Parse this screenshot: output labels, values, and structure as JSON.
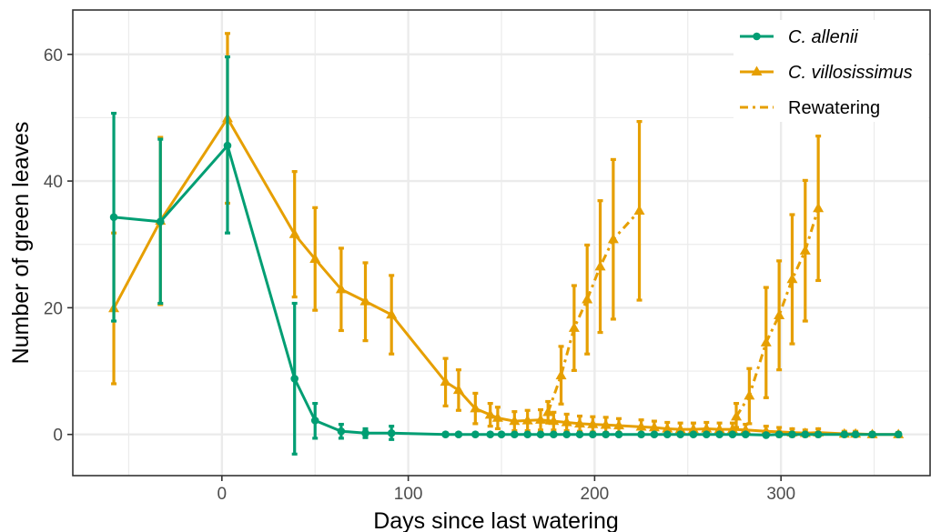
{
  "chart_data": {
    "type": "line",
    "title": "",
    "xlabel": "Days since last watering",
    "ylabel": "Number of green leaves",
    "xlim": [
      -80,
      380
    ],
    "ylim": [
      -6.5,
      67
    ],
    "x_ticks": [
      0,
      100,
      200,
      300
    ],
    "y_ticks": [
      0,
      20,
      40,
      60
    ],
    "grid": true,
    "legend_position": "top-right",
    "legend": [
      {
        "label": "C. allenii",
        "italic": true,
        "series": "C. allenii"
      },
      {
        "label": "C. villosissimus",
        "italic": true,
        "series": "C. villosissimus"
      },
      {
        "label": "Rewatering",
        "italic": false,
        "series": "Rewatering"
      }
    ],
    "series": [
      {
        "name": "C. allenii",
        "color": "#009E73",
        "marker": "circle",
        "linestyle": "solid",
        "points": [
          {
            "x": -58,
            "y": 34.3,
            "lo": 17.9,
            "hi": 50.7
          },
          {
            "x": -33,
            "y": 33.6,
            "lo": 20.7,
            "hi": 46.6
          },
          {
            "x": 3,
            "y": 45.6,
            "lo": 31.8,
            "hi": 59.6
          },
          {
            "x": 39,
            "y": 8.8,
            "lo": -3.1,
            "hi": 20.7
          },
          {
            "x": 50,
            "y": 2.2,
            "lo": -0.6,
            "hi": 4.9
          },
          {
            "x": 64,
            "y": 0.5,
            "lo": -0.6,
            "hi": 1.6
          },
          {
            "x": 77,
            "y": 0.2,
            "lo": -0.5,
            "hi": 0.9
          },
          {
            "x": 91,
            "y": 0.2,
            "lo": -0.8,
            "hi": 1.3
          },
          {
            "x": 120,
            "y": 0.0
          },
          {
            "x": 127,
            "y": 0.0
          },
          {
            "x": 136,
            "y": 0.0
          },
          {
            "x": 144,
            "y": 0.0
          },
          {
            "x": 150,
            "y": 0.0
          },
          {
            "x": 157,
            "y": 0.0
          },
          {
            "x": 164,
            "y": 0.0
          },
          {
            "x": 171,
            "y": 0.0
          },
          {
            "x": 178,
            "y": 0.0
          },
          {
            "x": 185,
            "y": 0.0
          },
          {
            "x": 192,
            "y": 0.0
          },
          {
            "x": 199,
            "y": 0.0
          },
          {
            "x": 206,
            "y": 0.0
          },
          {
            "x": 213,
            "y": 0.0
          },
          {
            "x": 225,
            "y": 0.0
          },
          {
            "x": 232,
            "y": 0.0
          },
          {
            "x": 239,
            "y": 0.0
          },
          {
            "x": 246,
            "y": 0.0
          },
          {
            "x": 253,
            "y": 0.0
          },
          {
            "x": 260,
            "y": 0.0
          },
          {
            "x": 267,
            "y": 0.0
          },
          {
            "x": 274,
            "y": 0.0
          },
          {
            "x": 281,
            "y": 0.0
          },
          {
            "x": 292,
            "y": -0.1
          },
          {
            "x": 299,
            "y": 0.0
          },
          {
            "x": 306,
            "y": 0.0
          },
          {
            "x": 313,
            "y": 0.0
          },
          {
            "x": 320,
            "y": 0.0
          },
          {
            "x": 334,
            "y": 0.0
          },
          {
            "x": 340,
            "y": 0.0
          },
          {
            "x": 349,
            "y": 0.0
          },
          {
            "x": 363,
            "y": 0.0
          }
        ]
      },
      {
        "name": "C. villosissimus",
        "color": "#E69F00",
        "marker": "triangle",
        "linestyle": "solid",
        "points": [
          {
            "x": -58,
            "y": 19.9,
            "lo": 8.0,
            "hi": 31.8
          },
          {
            "x": -33,
            "y": 33.7,
            "lo": 20.5,
            "hi": 46.9
          },
          {
            "x": 3,
            "y": 49.9,
            "lo": 36.5,
            "hi": 63.3
          },
          {
            "x": 39,
            "y": 31.6,
            "lo": 21.7,
            "hi": 41.5
          },
          {
            "x": 50,
            "y": 27.7,
            "lo": 19.6,
            "hi": 35.8
          },
          {
            "x": 64,
            "y": 22.9,
            "lo": 16.4,
            "hi": 29.4
          },
          {
            "x": 77,
            "y": 21.0,
            "lo": 14.8,
            "hi": 27.1
          },
          {
            "x": 91,
            "y": 18.9,
            "lo": 12.7,
            "hi": 25.1
          },
          {
            "x": 120,
            "y": 8.3,
            "lo": 4.5,
            "hi": 12.0
          },
          {
            "x": 127,
            "y": 7.0,
            "lo": 3.8,
            "hi": 10.2
          },
          {
            "x": 136,
            "y": 4.1,
            "lo": 1.7,
            "hi": 6.5
          },
          {
            "x": 144,
            "y": 3.1,
            "lo": 1.3,
            "hi": 4.9
          },
          {
            "x": 148,
            "y": 2.6,
            "lo": 0.9,
            "hi": 4.3
          },
          {
            "x": 157,
            "y": 2.1,
            "lo": 0.6,
            "hi": 3.6
          },
          {
            "x": 164,
            "y": 2.2,
            "lo": 0.6,
            "hi": 3.8
          },
          {
            "x": 171,
            "y": 2.3,
            "lo": 0.7,
            "hi": 3.9
          },
          {
            "x": 178,
            "y": 2.1,
            "lo": 0.7,
            "hi": 3.5
          },
          {
            "x": 185,
            "y": 1.9,
            "lo": 0.6,
            "hi": 3.2
          },
          {
            "x": 192,
            "y": 1.7,
            "lo": 0.5,
            "hi": 2.9
          },
          {
            "x": 199,
            "y": 1.6,
            "lo": 0.4,
            "hi": 2.8
          },
          {
            "x": 206,
            "y": 1.5,
            "lo": 0.3,
            "hi": 2.7
          },
          {
            "x": 213,
            "y": 1.4,
            "lo": 0.3,
            "hi": 2.5
          },
          {
            "x": 225,
            "y": 1.2,
            "lo": 0.1,
            "hi": 2.3
          },
          {
            "x": 232,
            "y": 1.1,
            "lo": 0.1,
            "hi": 2.1
          },
          {
            "x": 239,
            "y": 0.9,
            "lo": -0.1,
            "hi": 1.9
          },
          {
            "x": 246,
            "y": 0.8,
            "lo": -0.2,
            "hi": 1.8
          },
          {
            "x": 253,
            "y": 0.8,
            "lo": -0.2,
            "hi": 1.8
          },
          {
            "x": 260,
            "y": 0.9,
            "lo": -0.1,
            "hi": 1.9
          },
          {
            "x": 267,
            "y": 0.8,
            "lo": -0.2,
            "hi": 1.8
          },
          {
            "x": 274,
            "y": 0.8,
            "lo": -0.2,
            "hi": 1.8
          },
          {
            "x": 281,
            "y": 0.7,
            "lo": -0.2,
            "hi": 1.6
          },
          {
            "x": 292,
            "y": 0.5,
            "lo": -0.3,
            "hi": 1.3
          },
          {
            "x": 299,
            "y": 0.4,
            "lo": -0.3,
            "hi": 1.1
          },
          {
            "x": 306,
            "y": 0.3,
            "lo": -0.3,
            "hi": 0.9
          },
          {
            "x": 313,
            "y": 0.2,
            "lo": -0.3,
            "hi": 0.7
          },
          {
            "x": 320,
            "y": 0.3,
            "lo": -0.3,
            "hi": 0.9
          },
          {
            "x": 334,
            "y": 0.1,
            "lo": -0.3,
            "hi": 0.5
          },
          {
            "x": 340,
            "y": 0.1,
            "lo": -0.3,
            "hi": 0.5
          },
          {
            "x": 349,
            "y": 0.0,
            "lo": -0.3,
            "hi": 0.3
          },
          {
            "x": 363,
            "y": 0.0,
            "lo": -0.3,
            "hi": 0.3
          }
        ]
      },
      {
        "name": "Rewatering",
        "color": "#E69F00",
        "marker": "triangle",
        "linestyle": "dashed",
        "segments": [
          [
            {
              "x": 175,
              "y": 3.5,
              "lo": 1.8,
              "hi": 5.2
            },
            {
              "x": 182,
              "y": 9.3,
              "lo": 4.8,
              "hi": 13.9
            },
            {
              "x": 189,
              "y": 16.8,
              "lo": 10.1,
              "hi": 23.5
            },
            {
              "x": 196,
              "y": 21.3,
              "lo": 12.7,
              "hi": 29.9
            },
            {
              "x": 203,
              "y": 26.5,
              "lo": 16.1,
              "hi": 36.9
            },
            {
              "x": 210,
              "y": 30.8,
              "lo": 18.2,
              "hi": 43.4
            },
            {
              "x": 224,
              "y": 35.3,
              "lo": 21.2,
              "hi": 49.4
            }
          ],
          [
            {
              "x": 276,
              "y": 2.8,
              "lo": 1.1,
              "hi": 4.9
            },
            {
              "x": 283,
              "y": 6.1,
              "lo": 1.7,
              "hi": 10.4
            },
            {
              "x": 292,
              "y": 14.5,
              "lo": 5.8,
              "hi": 23.2
            },
            {
              "x": 299,
              "y": 18.8,
              "lo": 10.2,
              "hi": 27.4
            },
            {
              "x": 306,
              "y": 24.5,
              "lo": 14.3,
              "hi": 34.7
            },
            {
              "x": 313,
              "y": 29.0,
              "lo": 17.9,
              "hi": 40.1
            },
            {
              "x": 320,
              "y": 35.7,
              "lo": 24.3,
              "hi": 47.1
            }
          ]
        ]
      }
    ]
  }
}
